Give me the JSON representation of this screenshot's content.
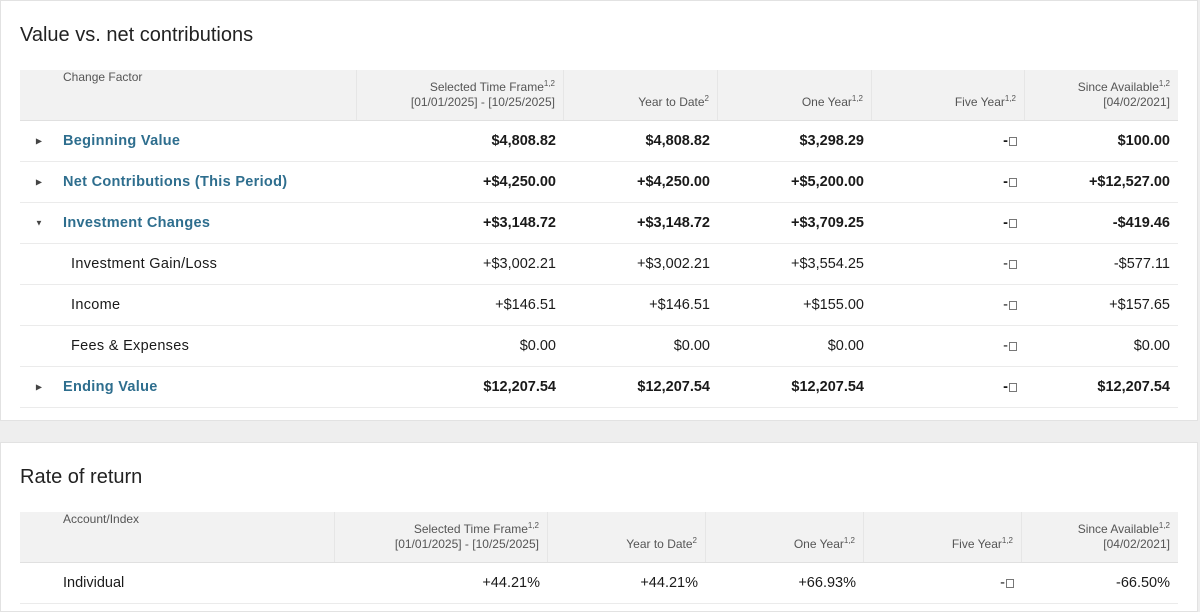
{
  "value_section": {
    "title": "Value vs. net contributions",
    "headers": {
      "change_factor": "Change Factor",
      "selected_time_frame": "Selected Time Frame",
      "selected_time_frame_sup": "1,2",
      "selected_range": "[01/01/2025] - [10/25/2025]",
      "year_to_date": "Year to Date",
      "year_to_date_sup": "2",
      "one_year": "One Year",
      "one_year_sup": "1,2",
      "five_year": "Five Year",
      "five_year_sup": "1,2",
      "since_available": "Since Available",
      "since_available_sup": "1,2",
      "since_date": "[04/02/2021]"
    },
    "rows": [
      {
        "label": "Beginning Value",
        "toggle": "▶",
        "stf": "$4,808.82",
        "ytd": "$4,808.82",
        "one": "$3,298.29",
        "five": "-",
        "since": "$100.00"
      },
      {
        "label": "Net Contributions (This Period)",
        "toggle": "▶",
        "stf": "+$4,250.00",
        "ytd": "+$4,250.00",
        "one": "+$5,200.00",
        "five": "-",
        "since": "+$12,527.00"
      },
      {
        "label": "Investment Changes",
        "toggle": "▼",
        "stf": "+$3,148.72",
        "ytd": "+$3,148.72",
        "one": "+$3,709.25",
        "five": "-",
        "since": "-$419.46"
      },
      {
        "label": "Investment Gain/Loss",
        "stf": "+$3,002.21",
        "ytd": "+$3,002.21",
        "one": "+$3,554.25",
        "five": "-",
        "since": "-$577.11"
      },
      {
        "label": "Income",
        "stf": "+$146.51",
        "ytd": "+$146.51",
        "one": "+$155.00",
        "five": "-",
        "since": "+$157.65"
      },
      {
        "label": "Fees & Expenses",
        "stf": "$0.00",
        "ytd": "$0.00",
        "one": "$0.00",
        "five": "-",
        "since": "$0.00"
      },
      {
        "label": "Ending Value",
        "toggle": "▶",
        "stf": "$12,207.54",
        "ytd": "$12,207.54",
        "one": "$12,207.54",
        "five": "-",
        "since": "$12,207.54"
      }
    ]
  },
  "return_section": {
    "title": "Rate of return",
    "headers": {
      "account_index": "Account/Index",
      "selected_time_frame": "Selected Time Frame",
      "selected_time_frame_sup": "1,2",
      "selected_range": "[01/01/2025] - [10/25/2025]",
      "year_to_date": "Year to Date",
      "year_to_date_sup": "2",
      "one_year": "One Year",
      "one_year_sup": "1,2",
      "five_year": "Five Year",
      "five_year_sup": "1,2",
      "since_available": "Since Available",
      "since_available_sup": "1,2",
      "since_date": "[04/02/2021]"
    },
    "rows": [
      {
        "label": "Individual",
        "stf": "+44.21%",
        "ytd": "+44.21%",
        "one": "+66.93%",
        "five": "-",
        "since": "-66.50%"
      }
    ]
  },
  "colors": {
    "link": "#2e6e8e",
    "header_bg": "#f2f2f2"
  }
}
